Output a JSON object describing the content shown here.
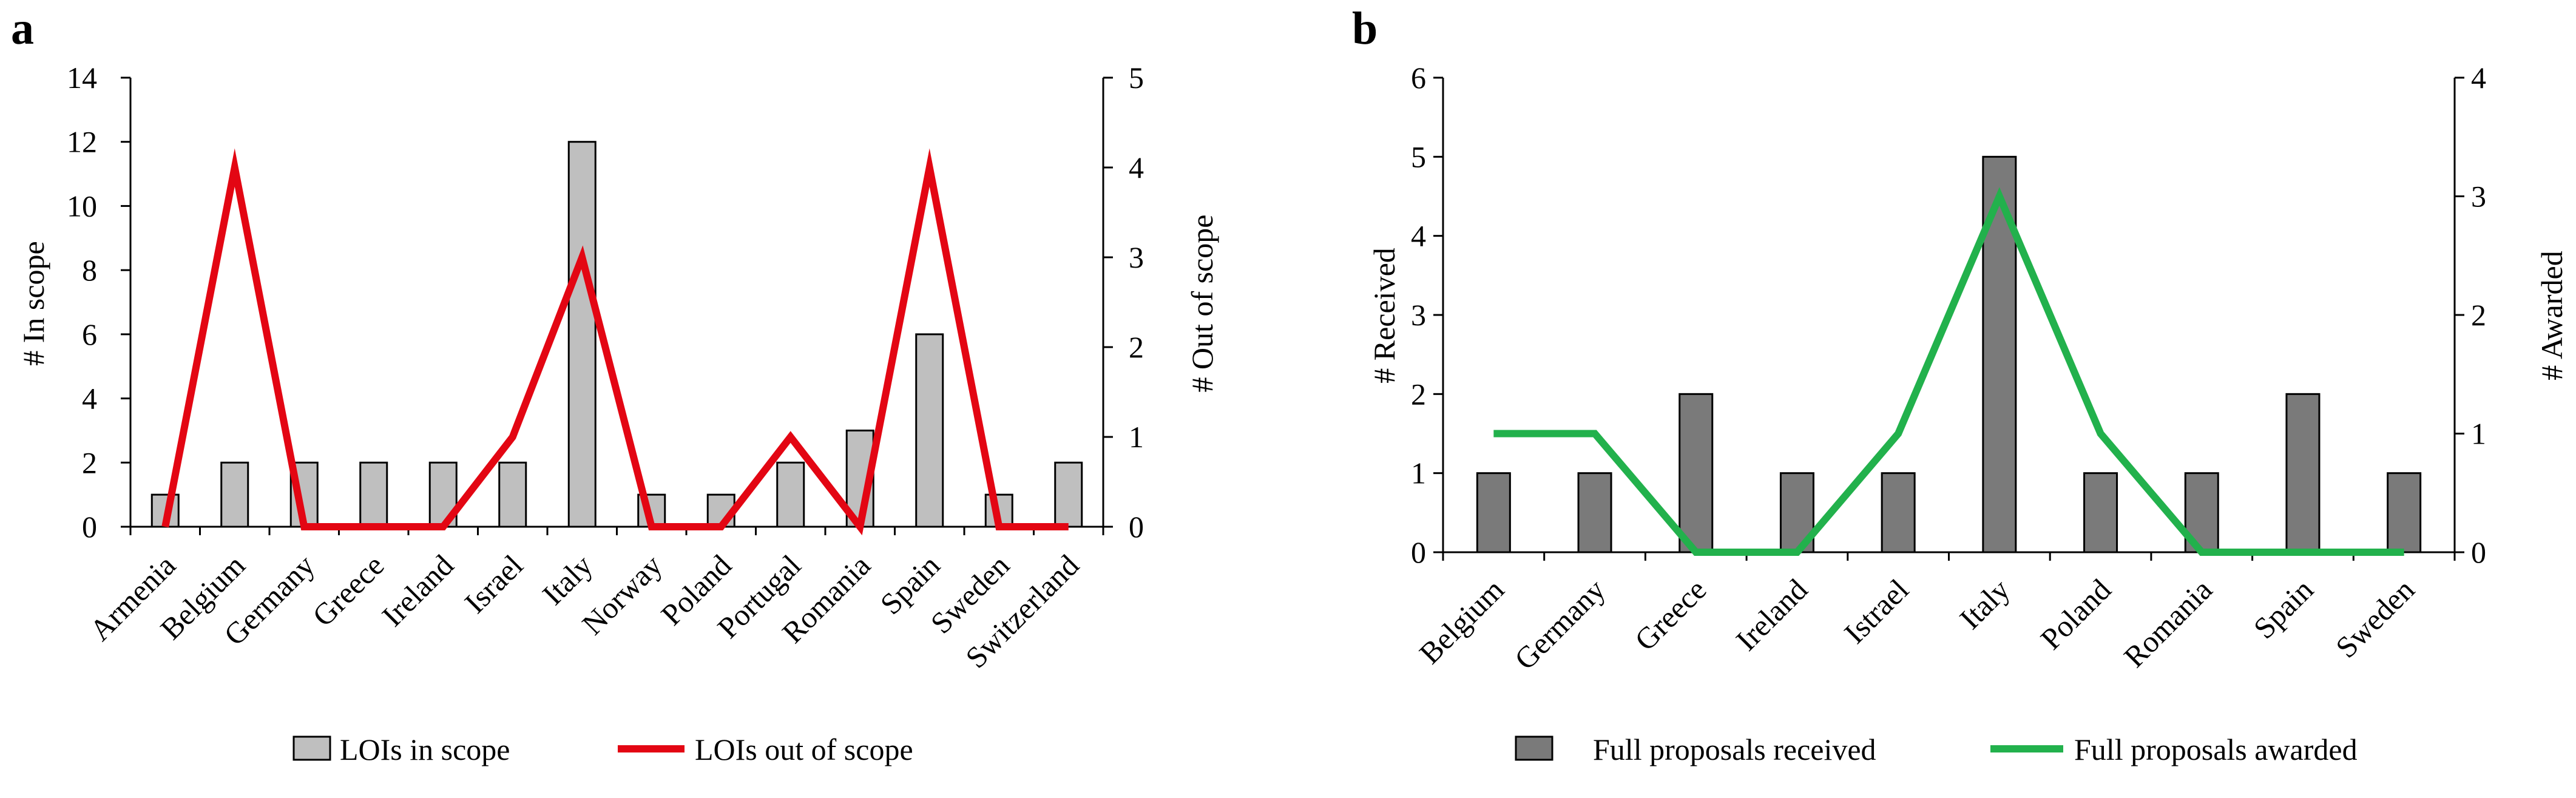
{
  "chart_data": [
    {
      "panel": "a",
      "type": "bar+line",
      "categories": [
        "Armenia",
        "Belgium",
        "Germany",
        "Greece",
        "Ireland",
        "Israel",
        "Italy",
        "Norway",
        "Poland",
        "Portugal",
        "Romania",
        "Spain",
        "Sweden",
        "Switzerland"
      ],
      "series": [
        {
          "name": "LOIs in scope",
          "type": "bar",
          "axis": "left",
          "color": "#bfbfbf",
          "values": [
            1,
            2,
            2,
            2,
            2,
            2,
            12,
            1,
            1,
            2,
            3,
            6,
            1,
            2
          ]
        },
        {
          "name": "LOIs out of scope",
          "type": "line",
          "axis": "right",
          "color": "#e30613",
          "values": [
            0,
            4,
            0,
            0,
            0,
            1,
            3,
            0,
            0,
            1,
            0,
            4,
            0,
            0
          ]
        }
      ],
      "ylabel": "# In scope",
      "ylabel_right": "# Out of scope",
      "ylim": [
        0,
        14
      ],
      "yticks": [
        0,
        2,
        4,
        6,
        8,
        10,
        12,
        14
      ],
      "ylim_right": [
        0,
        5
      ],
      "yticks_right": [
        0,
        1,
        2,
        3,
        4,
        5
      ],
      "grid": false,
      "legend_position": "bottom"
    },
    {
      "panel": "b",
      "type": "bar+line",
      "categories": [
        "Belgium",
        "Germany",
        "Greece",
        "Ireland",
        "Istrael",
        "Italy",
        "Poland",
        "Romania",
        "Spain",
        "Sweden"
      ],
      "series": [
        {
          "name": "Full proposals received",
          "type": "bar",
          "axis": "left",
          "color": "#7a7a7a",
          "values": [
            1,
            1,
            2,
            1,
            1,
            5,
            1,
            1,
            2,
            1
          ]
        },
        {
          "name": "Full proposals awarded",
          "type": "line",
          "axis": "right",
          "color": "#22b14c",
          "values": [
            1,
            1,
            0,
            0,
            1,
            3,
            1,
            0,
            0,
            0
          ]
        }
      ],
      "ylabel": "# Received",
      "ylabel_right": "# Awarded",
      "ylim": [
        0,
        6
      ],
      "yticks": [
        0,
        1,
        2,
        3,
        4,
        5,
        6
      ],
      "ylim_right": [
        0,
        4
      ],
      "yticks_right": [
        0,
        1,
        2,
        3,
        4
      ],
      "grid": false,
      "legend_position": "bottom"
    }
  ]
}
